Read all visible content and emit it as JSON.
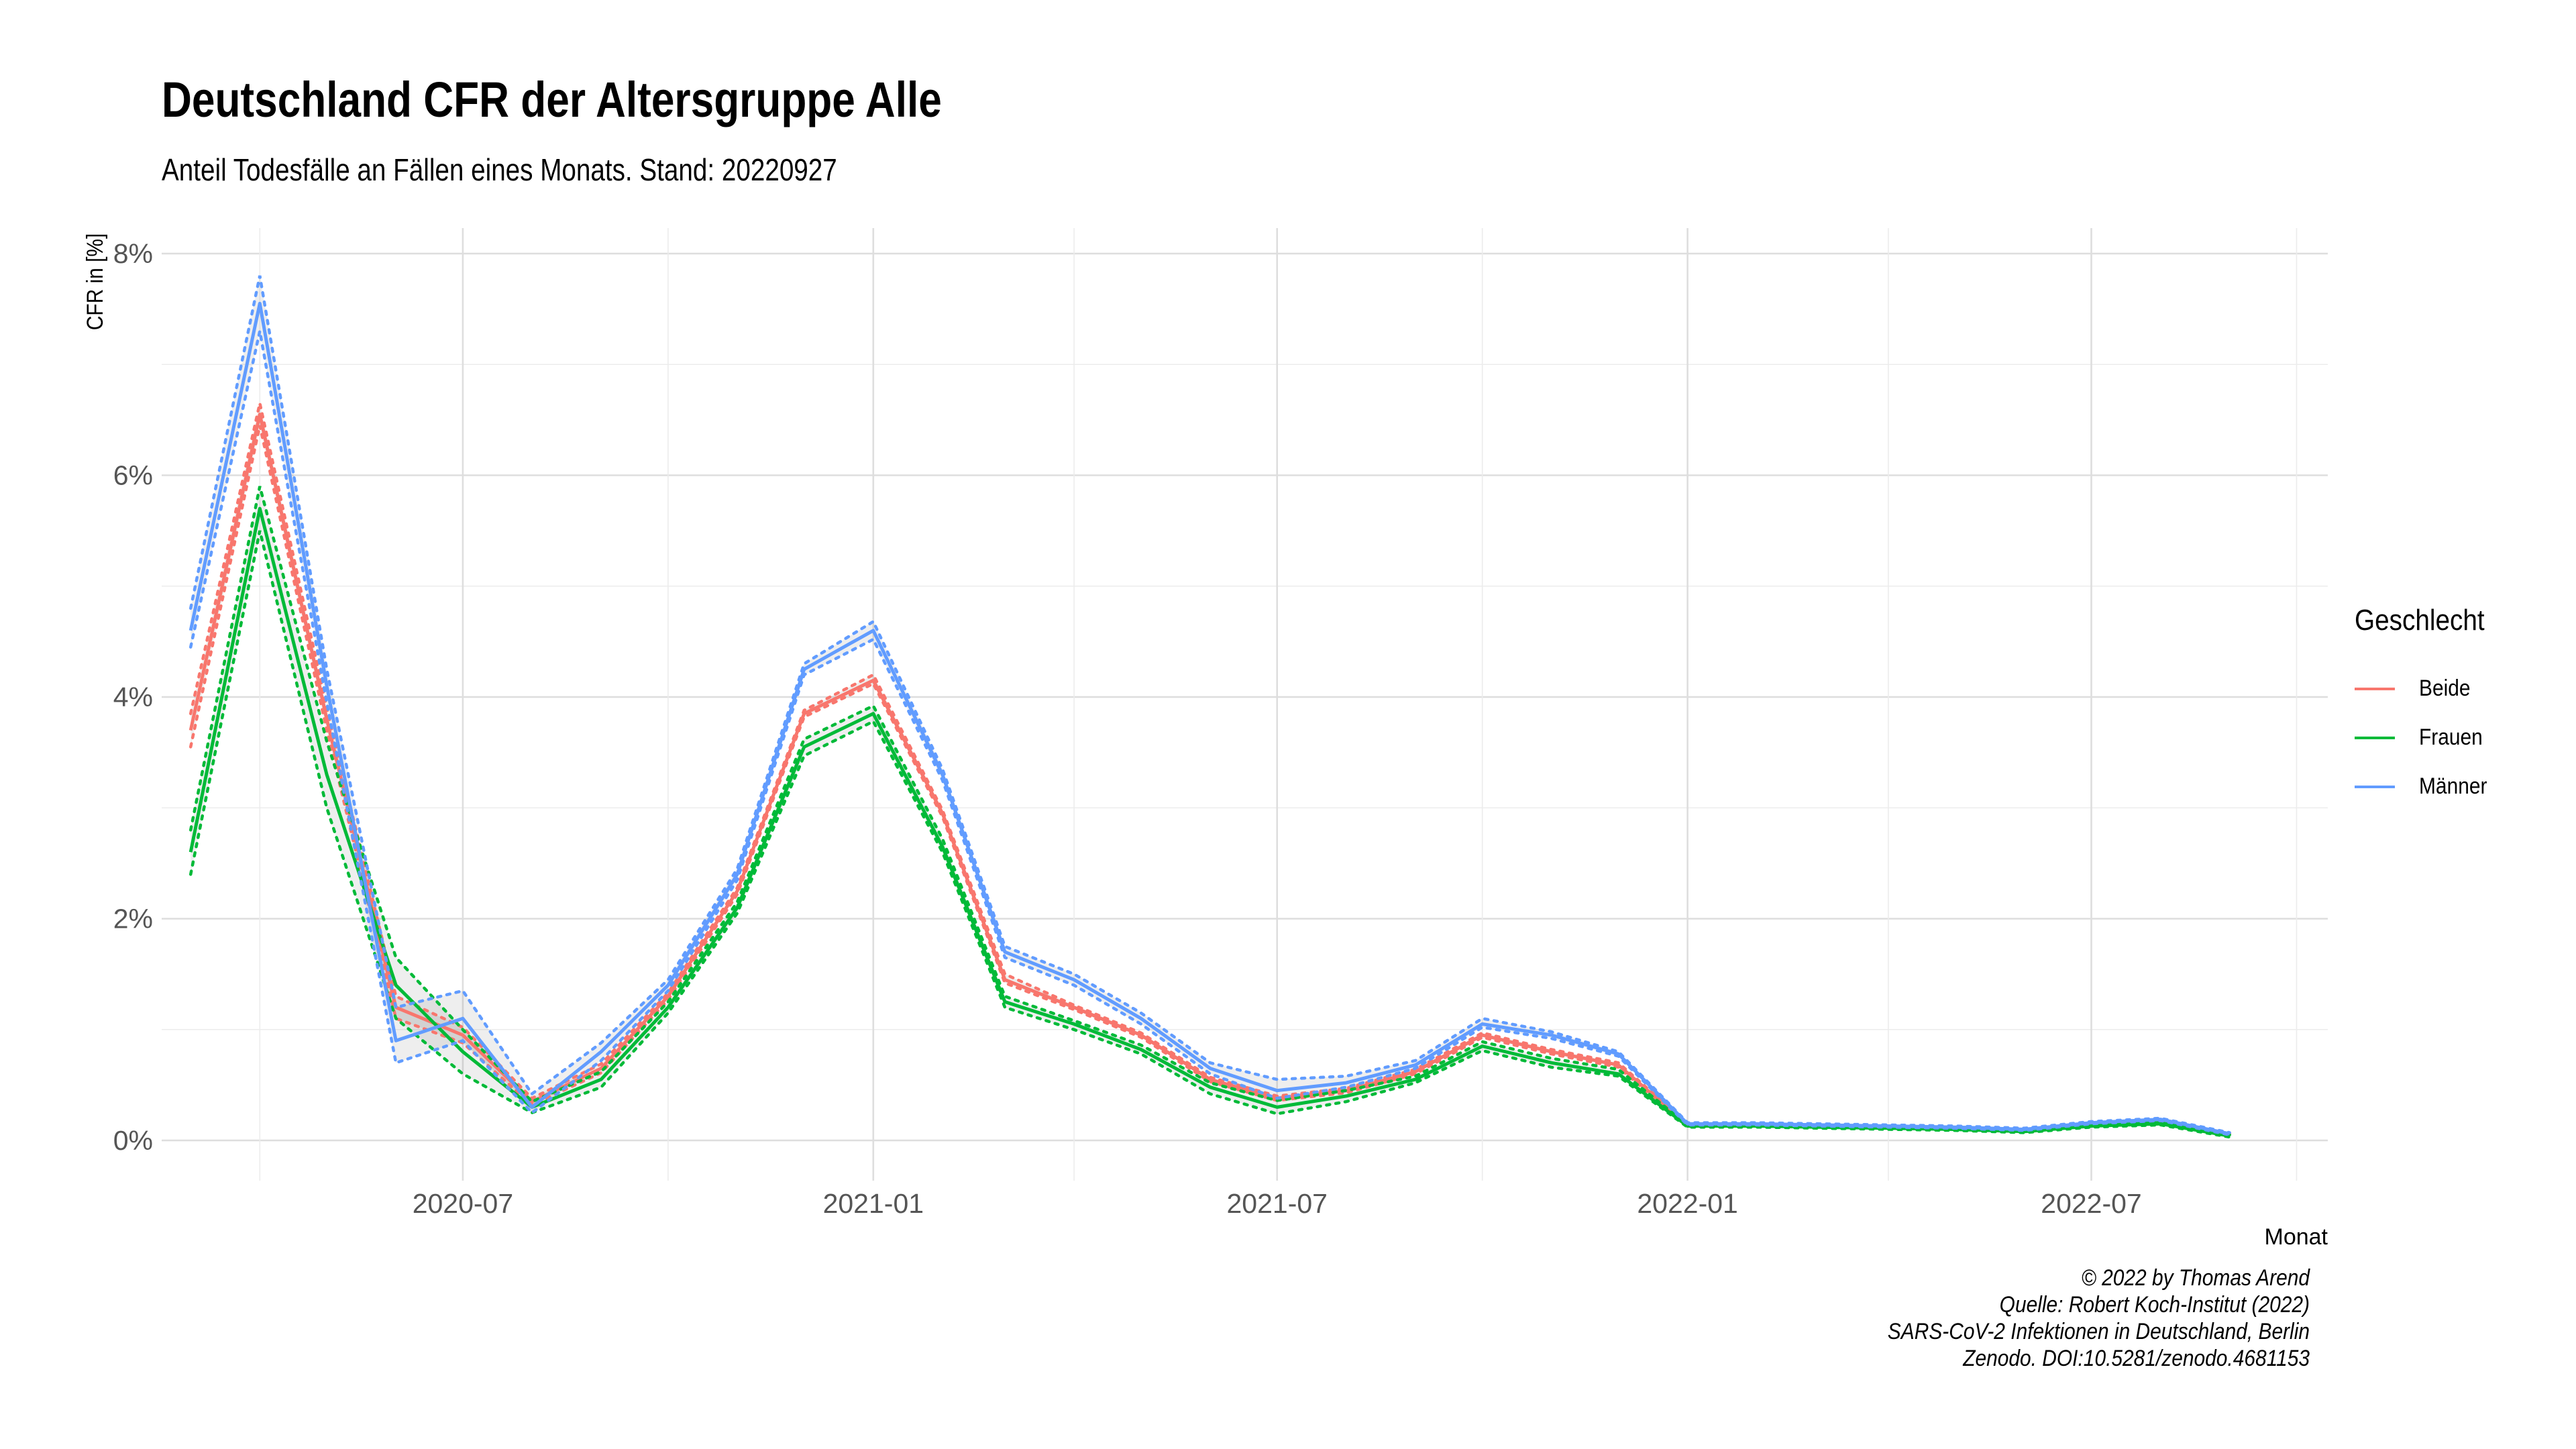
{
  "title": "Deutschland CFR der Altersgruppe Alle",
  "subtitle": "Anteil Todesfälle an Fällen eines Monats. Stand: 20220927",
  "caption": [
    "© 2022 by Thomas Arend",
    "Quelle: Robert Koch-Institut (2022)",
    "SARS-CoV-2 Infektionen in Deutschland, Berlin",
    "Zenodo. DOI:10.5281/zenodo.4681153"
  ],
  "legend": {
    "title": "Geschlecht",
    "items": [
      {
        "label": "Beide",
        "color": "#F8766D"
      },
      {
        "label": "Frauen",
        "color": "#00BA38"
      },
      {
        "label": "Männer",
        "color": "#619CFF"
      }
    ]
  },
  "chart_data": {
    "type": "line",
    "title": "Deutschland CFR der Altersgruppe Alle",
    "subtitle": "Anteil Todesfälle an Fällen eines Monats. Stand: 20220927",
    "xlabel": "Monat",
    "ylabel": "CFR in [%]",
    "ylim": [
      0,
      8
    ],
    "yticks": [
      0,
      2,
      4,
      6,
      8
    ],
    "ytick_labels": [
      "0%",
      "2%",
      "4%",
      "6%",
      "8%"
    ],
    "xlim": [
      "2020-02-17",
      "2022-10-15"
    ],
    "xticks": [
      "2020-07",
      "2021-01",
      "2021-07",
      "2022-01",
      "2022-07"
    ],
    "grid": true,
    "legend_position": "right",
    "confidence_band": "dotted lines and shaded ribbon show the confidence interval",
    "x": [
      "2020-03",
      "2020-04",
      "2020-05",
      "2020-06",
      "2020-07",
      "2020-08",
      "2020-09",
      "2020-10",
      "2020-11",
      "2020-12",
      "2021-01",
      "2021-02",
      "2021-03",
      "2021-04",
      "2021-05",
      "2021-06",
      "2021-07",
      "2021-08",
      "2021-09",
      "2021-10",
      "2021-11",
      "2021-12",
      "2022-01",
      "2022-02",
      "2022-03",
      "2022-04",
      "2022-05",
      "2022-06",
      "2022-07",
      "2022-08",
      "2022-09"
    ],
    "series": [
      {
        "name": "Beide",
        "color": "#F8766D",
        "values": [
          3.7,
          6.55,
          3.8,
          1.2,
          0.95,
          0.35,
          0.65,
          1.3,
          2.25,
          3.85,
          4.15,
          2.95,
          1.45,
          1.2,
          0.95,
          0.55,
          0.38,
          0.45,
          0.62,
          0.95,
          0.8,
          0.68,
          0.14,
          0.14,
          0.13,
          0.12,
          0.11,
          0.09,
          0.14,
          0.16,
          0.05
        ],
        "lower": [
          3.55,
          6.45,
          3.7,
          1.1,
          0.88,
          0.32,
          0.61,
          1.27,
          2.22,
          3.82,
          4.12,
          2.92,
          1.42,
          1.18,
          0.93,
          0.53,
          0.36,
          0.43,
          0.6,
          0.93,
          0.78,
          0.66,
          0.13,
          0.13,
          0.12,
          0.11,
          0.1,
          0.08,
          0.13,
          0.15,
          0.04
        ],
        "upper": [
          3.85,
          6.65,
          3.9,
          1.3,
          1.02,
          0.38,
          0.69,
          1.33,
          2.28,
          3.88,
          4.2,
          2.98,
          1.5,
          1.22,
          0.97,
          0.57,
          0.4,
          0.47,
          0.64,
          0.97,
          0.82,
          0.7,
          0.15,
          0.15,
          0.14,
          0.13,
          0.12,
          0.1,
          0.15,
          0.17,
          0.06
        ]
      },
      {
        "name": "Frauen",
        "color": "#00BA38",
        "values": [
          2.6,
          5.7,
          3.3,
          1.4,
          0.8,
          0.3,
          0.55,
          1.2,
          2.1,
          3.55,
          3.85,
          2.65,
          1.25,
          1.05,
          0.82,
          0.48,
          0.3,
          0.4,
          0.55,
          0.85,
          0.7,
          0.6,
          0.13,
          0.13,
          0.12,
          0.11,
          0.1,
          0.08,
          0.13,
          0.15,
          0.04
        ],
        "lower": [
          2.4,
          5.5,
          3.0,
          1.1,
          0.6,
          0.25,
          0.48,
          1.15,
          2.05,
          3.47,
          3.78,
          2.6,
          1.2,
          1.0,
          0.78,
          0.42,
          0.24,
          0.35,
          0.52,
          0.81,
          0.66,
          0.58,
          0.12,
          0.12,
          0.11,
          0.1,
          0.09,
          0.07,
          0.12,
          0.14,
          0.03
        ],
        "upper": [
          2.8,
          5.9,
          3.6,
          1.65,
          1.0,
          0.35,
          0.62,
          1.25,
          2.15,
          3.62,
          3.92,
          2.72,
          1.3,
          1.08,
          0.86,
          0.52,
          0.36,
          0.45,
          0.58,
          0.89,
          0.74,
          0.64,
          0.14,
          0.14,
          0.13,
          0.12,
          0.11,
          0.09,
          0.14,
          0.16,
          0.05
        ]
      },
      {
        "name": "Männer",
        "color": "#619CFF",
        "values": [
          4.6,
          7.55,
          4.1,
          0.9,
          1.1,
          0.3,
          0.8,
          1.4,
          2.4,
          4.25,
          4.6,
          3.3,
          1.7,
          1.45,
          1.1,
          0.65,
          0.45,
          0.52,
          0.68,
          1.05,
          0.95,
          0.78,
          0.15,
          0.15,
          0.14,
          0.13,
          0.12,
          0.1,
          0.16,
          0.19,
          0.06
        ],
        "lower": [
          4.45,
          7.3,
          3.95,
          0.7,
          0.9,
          0.25,
          0.72,
          1.35,
          2.35,
          4.2,
          4.52,
          3.25,
          1.65,
          1.4,
          1.05,
          0.6,
          0.38,
          0.48,
          0.65,
          1.02,
          0.92,
          0.76,
          0.14,
          0.14,
          0.13,
          0.12,
          0.11,
          0.09,
          0.15,
          0.18,
          0.05
        ],
        "upper": [
          4.8,
          7.8,
          4.25,
          1.2,
          1.35,
          0.42,
          0.88,
          1.45,
          2.45,
          4.3,
          4.68,
          3.35,
          1.75,
          1.5,
          1.15,
          0.7,
          0.55,
          0.58,
          0.72,
          1.1,
          0.98,
          0.8,
          0.16,
          0.16,
          0.15,
          0.14,
          0.13,
          0.11,
          0.17,
          0.2,
          0.07
        ]
      }
    ]
  }
}
